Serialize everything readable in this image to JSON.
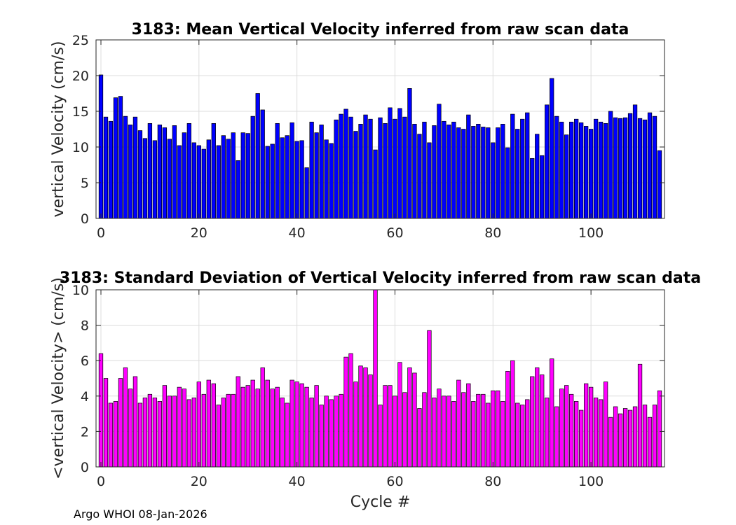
{
  "chart_data": [
    {
      "type": "bar",
      "title": "3183: Mean Vertical Velocity inferred from raw scan data",
      "xlabel": "",
      "ylabel": "vertical Velocity (cm/s)",
      "xlim": [
        -1,
        115
      ],
      "ylim": [
        0,
        25
      ],
      "xticks": [
        0,
        20,
        40,
        60,
        80,
        100
      ],
      "yticks": [
        0,
        5,
        10,
        15,
        20,
        25
      ],
      "grid": true,
      "bar_color": "#0000ff",
      "x_start": 0,
      "values": [
        20.1,
        14.2,
        13.6,
        16.9,
        17.1,
        14.3,
        13.1,
        14.2,
        12.3,
        11.2,
        13.3,
        10.9,
        13.1,
        12.7,
        11.1,
        13.0,
        10.2,
        12.0,
        13.3,
        10.6,
        10.2,
        9.7,
        11.0,
        13.3,
        10.2,
        11.6,
        11.1,
        12.0,
        8.1,
        12.0,
        11.9,
        14.3,
        17.5,
        15.2,
        10.1,
        10.4,
        13.3,
        11.3,
        11.6,
        13.4,
        10.8,
        10.9,
        7.1,
        13.5,
        12.0,
        13.1,
        11.0,
        10.5,
        13.8,
        14.6,
        15.3,
        14.2,
        12.2,
        13.2,
        14.5,
        13.9,
        9.6,
        14.1,
        13.3,
        15.5,
        13.9,
        15.4,
        14.2,
        18.2,
        13.2,
        11.8,
        13.5,
        10.6,
        13.0,
        16.0,
        13.6,
        13.1,
        13.5,
        12.7,
        12.5,
        14.5,
        12.9,
        13.2,
        12.8,
        12.7,
        10.6,
        12.7,
        13.2,
        9.9,
        14.6,
        12.5,
        13.9,
        14.8,
        8.4,
        11.8,
        8.8,
        15.9,
        19.6,
        14.3,
        13.5,
        11.7,
        13.5,
        13.9,
        13.4,
        12.9,
        12.5,
        13.9,
        13.5,
        13.3,
        15.0,
        14.1,
        14.0,
        14.1,
        14.7,
        15.9,
        14.0,
        13.8,
        14.8,
        14.3,
        9.5
      ]
    },
    {
      "type": "bar",
      "title": "3183: Standard Deviation of Vertical Velocity inferred from raw scan data",
      "xlabel": "Cycle #",
      "ylabel": "<vertical Velocity> (cm/s)",
      "xlim": [
        -1,
        115
      ],
      "ylim": [
        0,
        10
      ],
      "xticks": [
        0,
        20,
        40,
        60,
        80,
        100
      ],
      "yticks": [
        0,
        2,
        4,
        6,
        8,
        10
      ],
      "grid": true,
      "bar_color": "#ff00ff",
      "x_start": 0,
      "values": [
        6.4,
        5.0,
        3.6,
        3.7,
        5.0,
        5.6,
        4.4,
        5.1,
        3.6,
        3.9,
        4.1,
        3.9,
        3.7,
        4.6,
        4.0,
        4.0,
        4.5,
        4.4,
        3.8,
        3.9,
        4.8,
        4.1,
        4.9,
        4.7,
        3.5,
        3.9,
        4.1,
        4.1,
        5.1,
        4.5,
        4.6,
        4.9,
        4.4,
        5.6,
        4.9,
        4.4,
        4.5,
        3.9,
        3.6,
        4.9,
        4.8,
        4.7,
        4.5,
        3.9,
        4.6,
        3.5,
        4.0,
        3.8,
        4.0,
        4.1,
        6.2,
        6.4,
        4.8,
        5.7,
        5.6,
        5.2,
        10.0,
        3.5,
        4.6,
        4.6,
        4.0,
        5.9,
        4.2,
        5.6,
        5.3,
        3.3,
        4.2,
        7.7,
        3.9,
        4.4,
        4.0,
        4.0,
        3.7,
        4.9,
        4.2,
        4.7,
        3.7,
        4.1,
        4.1,
        3.6,
        4.3,
        4.3,
        3.7,
        5.4,
        6.0,
        3.6,
        3.5,
        3.8,
        5.1,
        5.6,
        5.2,
        3.9,
        6.1,
        3.4,
        4.4,
        4.6,
        4.1,
        3.7,
        3.2,
        4.7,
        4.5,
        3.9,
        3.8,
        4.8,
        2.8,
        3.4,
        3.0,
        3.3,
        3.2,
        3.4,
        5.8,
        3.5,
        2.8,
        3.5,
        4.3
      ]
    }
  ],
  "footer": "Argo WHOI 08-Jan-2026"
}
